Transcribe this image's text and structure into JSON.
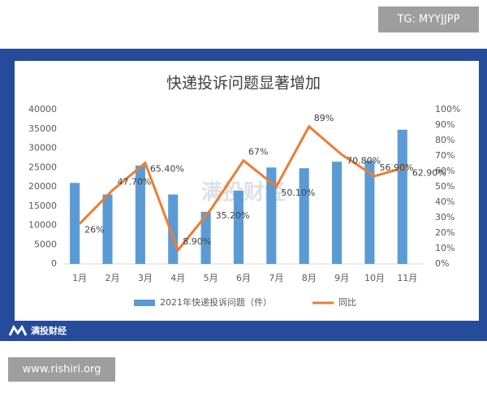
{
  "header_tag": "TG: MYYJJPP",
  "footer_brand": "满投财经",
  "source_url": "www.rishiri.org",
  "watermark": "满投财经",
  "chart_data": {
    "type": "bar",
    "title": "快递投诉问题显著增加",
    "categories": [
      "1月",
      "2月",
      "3月",
      "4月",
      "5月",
      "6月",
      "7月",
      "8月",
      "9月",
      "10月",
      "11月"
    ],
    "series": [
      {
        "name": "2021年快递投诉问题（件）",
        "type": "bar",
        "color": "#5b9bd5",
        "values": [
          21000,
          18000,
          25500,
          18000,
          13500,
          19000,
          25000,
          24800,
          26500,
          26800,
          34800
        ]
      },
      {
        "name": "同比",
        "type": "line",
        "axis": "y2",
        "color": "#ed7d31",
        "values": [
          26,
          47.7,
          65.4,
          8.9,
          35.2,
          67,
          50.1,
          89,
          70.8,
          56.9,
          62.9
        ],
        "value_labels": [
          "26%",
          "47.70%",
          "65.40%",
          "8.90%",
          "35.20%",
          "67%",
          "50.10%",
          "89%",
          "70.80%",
          "56.90%",
          "62.90%"
        ]
      }
    ],
    "ylim": [
      0,
      40000
    ],
    "yticks": [
      0,
      5000,
      10000,
      15000,
      20000,
      25000,
      30000,
      35000,
      40000
    ],
    "y2lim": [
      0,
      100
    ],
    "y2ticks": [
      {
        "value": 0,
        "label": "0%"
      },
      {
        "value": 10,
        "label": "10%"
      },
      {
        "value": 20,
        "label": "20%"
      },
      {
        "value": 30,
        "label": "30%"
      },
      {
        "value": 40,
        "label": "40%"
      },
      {
        "value": 50,
        "label": "50%"
      },
      {
        "value": 60,
        "label": "60%"
      },
      {
        "value": 70,
        "label": "70%"
      },
      {
        "value": 80,
        "label": "80%"
      },
      {
        "value": 90,
        "label": "90%"
      },
      {
        "value": 100,
        "label": "100%"
      }
    ],
    "legend": "bottom"
  }
}
